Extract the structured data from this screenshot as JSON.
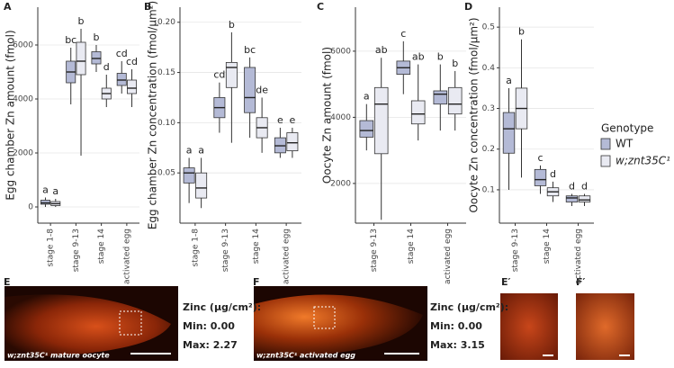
{
  "chart_data": [
    {
      "type": "box",
      "panel": "A",
      "ylabel": "Egg chamber Zn amount (fmol)",
      "categories": [
        "stage 1-8",
        "stage 9-13",
        "stage 14",
        "activated egg"
      ],
      "ylim": [
        -600,
        7400
      ],
      "yticks": [
        0,
        2000,
        4000,
        6000
      ],
      "grid": true,
      "series": [
        {
          "stats": [
            {
              "min": 0,
              "q1": 100,
              "median": 150,
              "q3": 250,
              "max": 350
            },
            {
              "min": 3800,
              "q1": 4600,
              "median": 5000,
              "q3": 5400,
              "max": 5900
            },
            {
              "min": 5000,
              "q1": 5300,
              "median": 5500,
              "q3": 5750,
              "max": 6000
            },
            {
              "min": 4200,
              "q1": 4500,
              "median": 4700,
              "q3": 4950,
              "max": 5400
            }
          ],
          "letters": [
            "a",
            "bc",
            "b",
            "cd"
          ]
        },
        {
          "stats": [
            {
              "min": 0,
              "q1": 50,
              "median": 120,
              "q3": 200,
              "max": 300
            },
            {
              "min": 1900,
              "q1": 4900,
              "median": 5400,
              "q3": 6100,
              "max": 6600
            },
            {
              "min": 3700,
              "q1": 4000,
              "median": 4200,
              "q3": 4400,
              "max": 4900
            },
            {
              "min": 3700,
              "q1": 4200,
              "median": 4400,
              "q3": 4700,
              "max": 5100
            }
          ],
          "letters": [
            "a",
            "b",
            "d",
            "cd"
          ]
        }
      ]
    },
    {
      "type": "box",
      "panel": "B",
      "ylabel": "Egg chamber Zn concentration (fmol/μm²)",
      "categories": [
        "stage 1-8",
        "stage 9-13",
        "stage 14",
        "activated egg"
      ],
      "ylim": [
        0,
        0.215
      ],
      "yticks": [
        0.05,
        {
          "value": 0.1,
          "label": "0.10"
        },
        0.15,
        {
          "value": 0.2,
          "label": "0.20"
        }
      ],
      "grid": true,
      "series": [
        {
          "stats": [
            {
              "min": 0.02,
              "q1": 0.04,
              "median": 0.05,
              "q3": 0.055,
              "max": 0.065
            },
            {
              "min": 0.09,
              "q1": 0.105,
              "median": 0.115,
              "q3": 0.125,
              "max": 0.14
            },
            {
              "min": 0.085,
              "q1": 0.11,
              "median": 0.125,
              "q3": 0.155,
              "max": 0.165
            },
            {
              "min": 0.065,
              "q1": 0.07,
              "median": 0.077,
              "q3": 0.085,
              "max": 0.095
            }
          ],
          "letters": [
            "a",
            "cd",
            "bc",
            "e"
          ]
        },
        {
          "stats": [
            {
              "min": 0.015,
              "q1": 0.025,
              "median": 0.035,
              "q3": 0.05,
              "max": 0.065
            },
            {
              "min": 0.08,
              "q1": 0.135,
              "median": 0.155,
              "q3": 0.16,
              "max": 0.19
            },
            {
              "min": 0.07,
              "q1": 0.085,
              "median": 0.095,
              "q3": 0.105,
              "max": 0.125
            },
            {
              "min": 0.065,
              "q1": 0.072,
              "median": 0.08,
              "q3": 0.09,
              "max": 0.095
            }
          ],
          "letters": [
            "a",
            "b",
            "de",
            "e"
          ]
        }
      ]
    },
    {
      "type": "box",
      "panel": "C",
      "ylabel": "Oocyte Zn amount (fmol)",
      "categories": [
        "stage 9-13",
        "stage 14",
        "activated egg"
      ],
      "ylim": [
        800,
        7330
      ],
      "yticks": [
        2000,
        4000,
        6000
      ],
      "grid": true,
      "series": [
        {
          "stats": [
            {
              "min": 3000,
              "q1": 3400,
              "median": 3600,
              "q3": 3900,
              "max": 4400
            },
            {
              "min": 4700,
              "q1": 5300,
              "median": 5500,
              "q3": 5700,
              "max": 6300
            },
            {
              "min": 3600,
              "q1": 4400,
              "median": 4700,
              "q3": 4800,
              "max": 5600
            }
          ],
          "letters": [
            "a",
            "c",
            "b"
          ]
        },
        {
          "stats": [
            {
              "min": 900,
              "q1": 2900,
              "median": 4400,
              "q3": 4900,
              "max": 5800
            },
            {
              "min": 3300,
              "q1": 3800,
              "median": 4100,
              "q3": 4500,
              "max": 5600
            },
            {
              "min": 3600,
              "q1": 4100,
              "median": 4400,
              "q3": 4900,
              "max": 5400
            }
          ],
          "letters": [
            "ab",
            "ab",
            "b"
          ]
        }
      ]
    },
    {
      "type": "box",
      "panel": "D",
      "ylabel": "Oocyte Zn concentration (fmol/μm²)",
      "categories": [
        "stage 9-13",
        "stage 14",
        "activated egg"
      ],
      "ylim": [
        0.018,
        0.549
      ],
      "yticks": [
        0.1,
        0.2,
        0.3,
        0.4,
        0.5
      ],
      "grid": true,
      "series": [
        {
          "stats": [
            {
              "min": 0.1,
              "q1": 0.19,
              "median": 0.25,
              "q3": 0.29,
              "max": 0.35
            },
            {
              "min": 0.09,
              "q1": 0.11,
              "median": 0.125,
              "q3": 0.15,
              "max": 0.16
            },
            {
              "min": 0.06,
              "q1": 0.07,
              "median": 0.08,
              "q3": 0.085,
              "max": 0.09
            }
          ],
          "letters": [
            "a",
            "c",
            "d"
          ]
        },
        {
          "stats": [
            {
              "min": 0.13,
              "q1": 0.25,
              "median": 0.3,
              "q3": 0.35,
              "max": 0.47
            },
            {
              "min": 0.07,
              "q1": 0.085,
              "median": 0.095,
              "q3": 0.105,
              "max": 0.12
            },
            {
              "min": 0.06,
              "q1": 0.07,
              "median": 0.075,
              "q3": 0.085,
              "max": 0.09
            }
          ],
          "letters": [
            "b",
            "d",
            "d"
          ]
        }
      ]
    }
  ],
  "legend": {
    "title": "Genotype",
    "series": [
      {
        "name": "WT",
        "color": "#b4bad6"
      },
      {
        "name": "w;znt35C¹",
        "color": "#e9eaf2"
      }
    ]
  },
  "images": [
    {
      "label": "E",
      "caption": "w;znt35C¹ mature oocyte",
      "zinc": "Zinc (μg/cm²):",
      "min": "Min: 0.00",
      "max": "Max: 2.27"
    },
    {
      "label": "F",
      "caption": "w;znt35C¹ activated egg",
      "zinc": "Zinc (μg/cm²):",
      "min": "Min: 0.00",
      "max": "Max: 3.15"
    },
    {
      "label": "E′"
    },
    {
      "label": "F′"
    }
  ]
}
